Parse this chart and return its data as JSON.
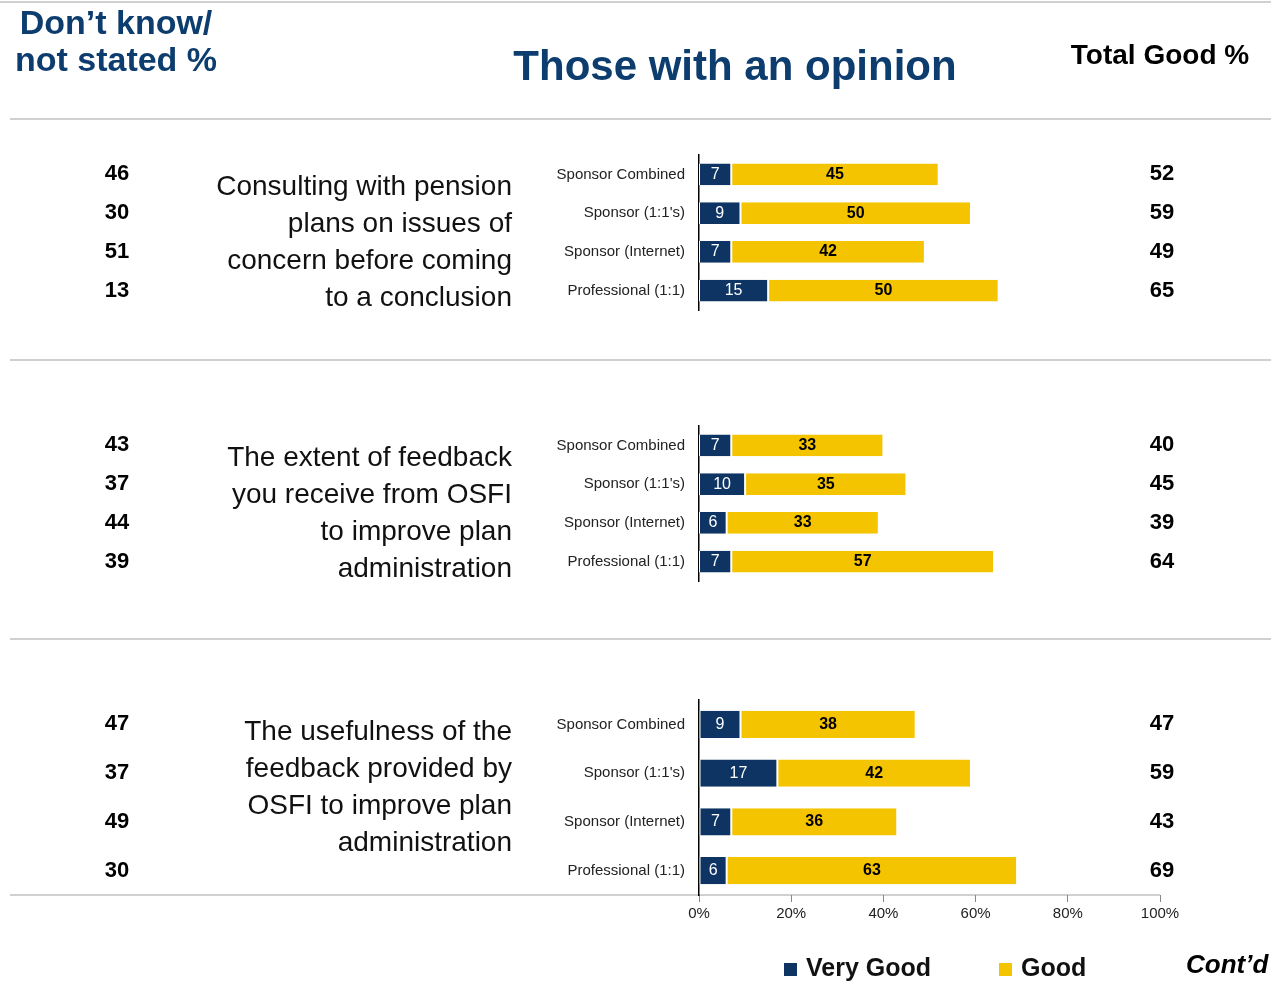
{
  "chart_data": [
    {
      "type": "bar",
      "orientation": "horizontal",
      "stacked": true,
      "title": "Those with an opinion",
      "categories": [
        "Sponsor Combined",
        "Sponsor (1:1's)",
        "Sponsor (Internet)",
        "Professional (1:1)"
      ],
      "series": [
        {
          "color": "#0d3462",
          "values": [
            7,
            9,
            7,
            15
          ]
        },
        {
          "color": "#f5c400",
          "values": [
            45,
            50,
            42,
            50
          ]
        }
      ],
      "xlim": [
        0,
        100
      ],
      "tick_labels": "y",
      "data_labels": true,
      "annotations": [
        "Consulting with pension plans on issues of concern before coming to a conclusion",
        "46",
        "30",
        "51",
        "13",
        "52",
        "59",
        "49",
        "65",
        "Don’t know/ not stated %",
        "Total Good %"
      ]
    },
    {
      "type": "bar",
      "orientation": "horizontal",
      "stacked": true,
      "categories": [
        "Sponsor Combined",
        "Sponsor (1:1's)",
        "Sponsor (Internet)",
        "Professional (1:1)"
      ],
      "series": [
        {
          "color": "#0d3462",
          "values": [
            7,
            10,
            6,
            7
          ]
        },
        {
          "color": "#f5c400",
          "values": [
            33,
            35,
            33,
            57
          ]
        }
      ],
      "xlim": [
        0,
        100
      ],
      "tick_labels": "y",
      "data_labels": true,
      "annotations": [
        "The extent of feedback you receive from OSFI to improve plan administration",
        "43",
        "37",
        "44",
        "39",
        "40",
        "45",
        "39",
        "64"
      ]
    },
    {
      "type": "bar",
      "orientation": "horizontal",
      "stacked": true,
      "categories": [
        "Sponsor Combined",
        "Sponsor (1:1's)",
        "Sponsor (Internet)",
        "Professional (1:1)"
      ],
      "series": [
        {
          "name": "Very Good",
          "color": "#0d3462",
          "values": [
            9,
            17,
            7,
            6
          ]
        },
        {
          "name": "Good",
          "color": "#f5c400",
          "values": [
            38,
            42,
            36,
            63
          ]
        }
      ],
      "xlim": [
        0,
        100
      ],
      "xticks": [
        {
          "value": 0,
          "label": "0%"
        },
        {
          "value": 20,
          "label": "20%"
        },
        {
          "value": 40,
          "label": "40%"
        },
        {
          "value": 60,
          "label": "60%"
        },
        {
          "value": 80,
          "label": "80%"
        },
        {
          "value": 100,
          "label": "100%"
        }
      ],
      "legend": "bottom",
      "data_labels": true,
      "annotations": [
        "The usefulness of the feedback provided by OSFI to improve plan administration",
        "47",
        "37",
        "49",
        "30",
        "47",
        "59",
        "43",
        "69",
        "Cont’d"
      ]
    }
  ]
}
